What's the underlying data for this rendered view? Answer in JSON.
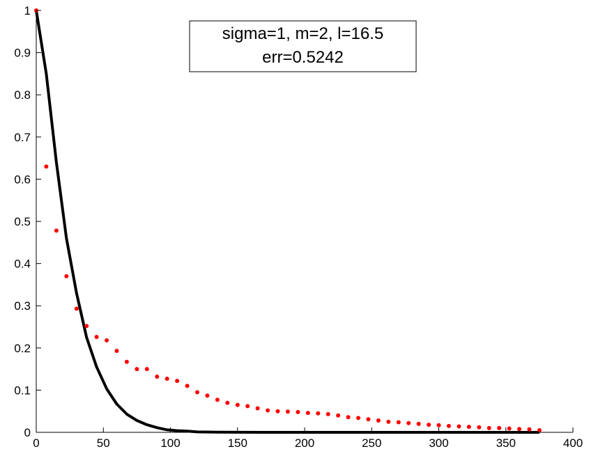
{
  "chart_data": {
    "type": "line",
    "title": "",
    "xlabel": "",
    "ylabel": "",
    "xlim": [
      0,
      400
    ],
    "ylim": [
      0,
      1
    ],
    "x_ticks": [
      "0",
      "50",
      "100",
      "150",
      "200",
      "250",
      "300",
      "350",
      "400"
    ],
    "y_ticks": [
      "0",
      "0.1",
      "0.2",
      "0.3",
      "0.4",
      "0.5",
      "0.6",
      "0.7",
      "0.8",
      "0.9",
      "1"
    ],
    "grid": false,
    "annotation": {
      "line1": "sigma=1, m=2, l=16.5",
      "line2": "err=0.5242"
    },
    "series": [
      {
        "style": "line",
        "color": "#000000",
        "x": [
          0,
          7.5,
          15,
          22.5,
          30,
          37.5,
          45,
          52.5,
          60,
          67.5,
          75,
          82.5,
          90,
          97.5,
          105,
          112.5,
          120,
          135,
          150,
          200,
          250,
          300,
          350,
          375
        ],
        "y": [
          1.0,
          0.85,
          0.64,
          0.46,
          0.33,
          0.225,
          0.155,
          0.103,
          0.067,
          0.043,
          0.028,
          0.018,
          0.011,
          0.006,
          0.004,
          0.003,
          0.001,
          0.0005,
          0.0002,
          0.0,
          0.0,
          0.0,
          0.0,
          0.0
        ]
      },
      {
        "style": "dots",
        "color": "#ff0000",
        "x": [
          0,
          7.5,
          15,
          22.5,
          30,
          37.5,
          45,
          52.5,
          60,
          67.5,
          75,
          82.5,
          90,
          97.5,
          105,
          112.5,
          120,
          127.5,
          135,
          142.5,
          150,
          157.5,
          165,
          172.5,
          180,
          187.5,
          195,
          202.5,
          210,
          217.5,
          225,
          232.5,
          240,
          247.5,
          255,
          262.5,
          270,
          277.5,
          285,
          292.5,
          300,
          307.5,
          315,
          322.5,
          330,
          337.5,
          345,
          352.5,
          360,
          367.5,
          375
        ],
        "y": [
          1.0,
          0.63,
          0.478,
          0.37,
          0.293,
          0.252,
          0.226,
          0.218,
          0.193,
          0.167,
          0.15,
          0.15,
          0.132,
          0.127,
          0.122,
          0.11,
          0.095,
          0.087,
          0.077,
          0.07,
          0.065,
          0.062,
          0.057,
          0.052,
          0.05,
          0.049,
          0.048,
          0.046,
          0.045,
          0.043,
          0.04,
          0.036,
          0.034,
          0.031,
          0.028,
          0.025,
          0.024,
          0.022,
          0.02,
          0.018,
          0.017,
          0.015,
          0.014,
          0.013,
          0.012,
          0.01,
          0.01,
          0.009,
          0.008,
          0.007,
          0.005
        ]
      }
    ]
  }
}
